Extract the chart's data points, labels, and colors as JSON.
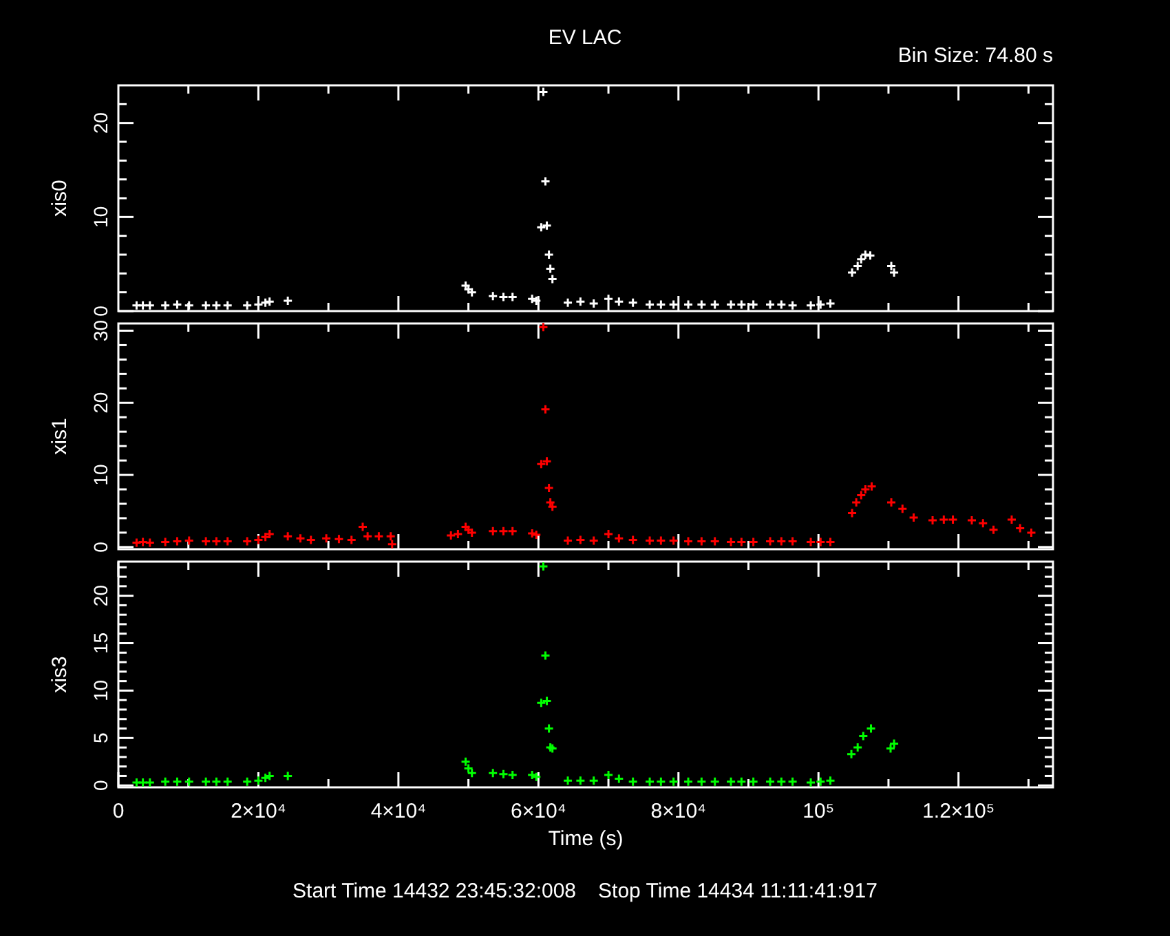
{
  "chart_data": [
    {
      "type": "scatter",
      "title": "EV LAC",
      "annotations": [
        "Bin Size: 74.80 s"
      ],
      "ylabel": "xis0",
      "marker": "cross",
      "tick_labels": "y",
      "xlim": [
        0,
        133500
      ],
      "xticks": [
        {
          "value": 10000,
          "label": null
        },
        20000,
        {
          "value": 30000,
          "label": null
        },
        40000,
        {
          "value": 50000,
          "label": null
        },
        60000,
        {
          "value": 70000,
          "label": null
        },
        80000,
        {
          "value": 90000,
          "label": null
        },
        100000,
        {
          "value": 110000,
          "label": null
        },
        120000,
        {
          "value": 130000,
          "label": null
        }
      ],
      "ylim": [
        0,
        24
      ],
      "yticks": [
        0,
        {
          "value": 2,
          "label": null
        },
        {
          "value": 4,
          "label": null
        },
        {
          "value": 6,
          "label": null
        },
        {
          "value": 8,
          "label": null
        },
        10,
        {
          "value": 12,
          "label": null
        },
        {
          "value": 14,
          "label": null
        },
        {
          "value": 16,
          "label": null
        },
        {
          "value": 18,
          "label": null
        },
        20,
        {
          "value": 22,
          "label": null
        }
      ],
      "series": [
        {
          "color": "#ffffff",
          "x": [
            2600,
            3500,
            4500,
            6700,
            8400,
            10100,
            12500,
            14000,
            15600,
            18400,
            20000,
            21000,
            21600,
            24200,
            49600,
            50000,
            50500,
            53500,
            55000,
            56300,
            59100,
            59700,
            60400,
            60700,
            61000,
            61200,
            61500,
            61700,
            62000,
            64200,
            66000,
            67900,
            70000,
            71500,
            73500,
            75900,
            77500,
            79300,
            81400,
            83300,
            85200,
            87500,
            89000,
            90700,
            93100,
            94700,
            96300,
            98900,
            100300,
            101700,
            104800,
            105600,
            106100,
            106700,
            107400,
            110400,
            110800
          ],
          "values": [
            0.6,
            0.6,
            0.6,
            0.6,
            0.7,
            0.6,
            0.6,
            0.6,
            0.6,
            0.6,
            0.7,
            0.9,
            1.0,
            1.1,
            2.7,
            2.3,
            2.0,
            1.6,
            1.5,
            1.5,
            1.3,
            1.1,
            8.9,
            23.3,
            13.8,
            9.1,
            6.0,
            4.5,
            3.4,
            0.9,
            1.0,
            0.8,
            1.3,
            1.0,
            0.9,
            0.7,
            0.7,
            0.7,
            0.7,
            0.7,
            0.7,
            0.7,
            0.7,
            0.7,
            0.7,
            0.7,
            0.6,
            0.6,
            0.7,
            0.8,
            4.1,
            4.8,
            5.5,
            6.0,
            5.9,
            4.8,
            4.1
          ]
        }
      ]
    },
    {
      "type": "scatter",
      "ylabel": "xis1",
      "marker": "cross",
      "tick_labels": "y",
      "xlim": [
        0,
        133500
      ],
      "xticks": [
        {
          "value": 10000,
          "label": null
        },
        20000,
        {
          "value": 30000,
          "label": null
        },
        40000,
        {
          "value": 50000,
          "label": null
        },
        60000,
        {
          "value": 70000,
          "label": null
        },
        80000,
        {
          "value": 90000,
          "label": null
        },
        100000,
        {
          "value": 110000,
          "label": null
        },
        120000,
        {
          "value": 130000,
          "label": null
        }
      ],
      "ylim": [
        -0.3,
        31
      ],
      "yticks": [
        0,
        {
          "value": 2,
          "label": null
        },
        {
          "value": 4,
          "label": null
        },
        {
          "value": 6,
          "label": null
        },
        {
          "value": 8,
          "label": null
        },
        10,
        {
          "value": 12,
          "label": null
        },
        {
          "value": 14,
          "label": null
        },
        {
          "value": 16,
          "label": null
        },
        {
          "value": 18,
          "label": null
        },
        20,
        {
          "value": 22,
          "label": null
        },
        {
          "value": 24,
          "label": null
        },
        {
          "value": 26,
          "label": null
        },
        {
          "value": 28,
          "label": null
        },
        30
      ],
      "series": [
        {
          "color": "#ff0000",
          "x": [
            2600,
            3500,
            4500,
            6700,
            8400,
            10100,
            12500,
            14000,
            15600,
            18400,
            20000,
            21000,
            21600,
            24200,
            26000,
            27500,
            29700,
            31500,
            33300,
            34900,
            35600,
            37200,
            38900,
            39100,
            47500,
            48500,
            49600,
            50000,
            50500,
            53500,
            55000,
            56300,
            59100,
            59700,
            60400,
            60700,
            61000,
            61200,
            61500,
            61700,
            62000,
            64200,
            66000,
            67900,
            70000,
            71500,
            73500,
            75900,
            77500,
            79300,
            81400,
            83300,
            85200,
            87500,
            89000,
            90700,
            93100,
            94700,
            96300,
            98900,
            100300,
            101700,
            104800,
            105400,
            106100,
            106700,
            107600,
            110400,
            112000,
            113600,
            116300,
            117900,
            119200,
            121900,
            123500,
            125000,
            127600,
            128800,
            130400
          ],
          "values": [
            0.6,
            0.7,
            0.6,
            0.7,
            0.8,
            0.9,
            0.8,
            0.8,
            0.8,
            0.8,
            1.0,
            1.4,
            1.8,
            1.5,
            1.2,
            1.0,
            1.2,
            1.1,
            1.0,
            2.8,
            1.5,
            1.5,
            1.5,
            0.4,
            1.6,
            1.8,
            2.8,
            2.4,
            2.0,
            2.2,
            2.2,
            2.2,
            1.9,
            1.7,
            11.5,
            30.5,
            19.1,
            11.9,
            8.2,
            6.2,
            5.6,
            0.9,
            1.0,
            0.9,
            1.8,
            1.2,
            1.0,
            0.9,
            0.9,
            0.9,
            0.8,
            0.8,
            0.8,
            0.7,
            0.7,
            0.7,
            0.8,
            0.8,
            0.8,
            0.7,
            0.7,
            0.7,
            4.7,
            6.2,
            7.2,
            8.0,
            8.4,
            6.2,
            5.3,
            4.1,
            3.7,
            3.8,
            3.8,
            3.7,
            3.3,
            2.4,
            3.8,
            2.6,
            2.0
          ]
        }
      ]
    },
    {
      "type": "scatter",
      "ylabel": "xis3",
      "xlabel": "Time (s)",
      "marker": "cross",
      "annotations": [
        "Start Time 14432 23:45:32:008",
        "Stop Time 14434 11:11:41:917"
      ],
      "xlim": [
        0,
        133500
      ],
      "xticks": [
        0,
        {
          "value": 10000,
          "label": null
        },
        {
          "value": 20000,
          "label": "2×10⁴"
        },
        {
          "value": 30000,
          "label": null
        },
        {
          "value": 40000,
          "label": "4×10⁴"
        },
        {
          "value": 50000,
          "label": null
        },
        {
          "value": 60000,
          "label": "6×10⁴"
        },
        {
          "value": 70000,
          "label": null
        },
        {
          "value": 80000,
          "label": "8×10⁴"
        },
        {
          "value": 90000,
          "label": null
        },
        {
          "value": 100000,
          "label": "10⁵"
        },
        {
          "value": 110000,
          "label": null
        },
        {
          "value": 120000,
          "label": "1.2×10⁵"
        },
        {
          "value": 130000,
          "label": null
        }
      ],
      "ylim": [
        -0.2,
        23.6
      ],
      "yticks": [
        0,
        {
          "value": 1,
          "label": null
        },
        {
          "value": 2,
          "label": null
        },
        {
          "value": 3,
          "label": null
        },
        {
          "value": 4,
          "label": null
        },
        5,
        {
          "value": 6,
          "label": null
        },
        {
          "value": 7,
          "label": null
        },
        {
          "value": 8,
          "label": null
        },
        {
          "value": 9,
          "label": null
        },
        10,
        {
          "value": 11,
          "label": null
        },
        {
          "value": 12,
          "label": null
        },
        {
          "value": 13,
          "label": null
        },
        {
          "value": 14,
          "label": null
        },
        15,
        {
          "value": 16,
          "label": null
        },
        {
          "value": 17,
          "label": null
        },
        {
          "value": 18,
          "label": null
        },
        {
          "value": 19,
          "label": null
        },
        20,
        {
          "value": 21,
          "label": null
        },
        {
          "value": 22,
          "label": null
        },
        {
          "value": 23,
          "label": null
        }
      ],
      "series": [
        {
          "color": "#00ff00",
          "x": [
            2600,
            3500,
            4500,
            6700,
            8400,
            10100,
            12500,
            14000,
            15600,
            18400,
            20000,
            21000,
            21600,
            24200,
            49600,
            50000,
            50500,
            53500,
            55000,
            56300,
            59100,
            59700,
            60400,
            60700,
            61000,
            61200,
            61500,
            61700,
            62000,
            64200,
            66000,
            67900,
            70000,
            71500,
            73500,
            75900,
            77500,
            79300,
            81400,
            83300,
            85200,
            87500,
            89000,
            90700,
            93100,
            94700,
            96300,
            98900,
            100300,
            101700,
            104700,
            105600,
            106400,
            107500,
            110300,
            110800
          ],
          "values": [
            0.3,
            0.3,
            0.3,
            0.4,
            0.4,
            0.4,
            0.4,
            0.4,
            0.4,
            0.4,
            0.5,
            0.8,
            1.0,
            1.0,
            2.5,
            1.8,
            1.3,
            1.3,
            1.2,
            1.1,
            1.1,
            0.9,
            8.7,
            23.1,
            13.7,
            8.9,
            6.0,
            4.0,
            3.9,
            0.5,
            0.5,
            0.5,
            1.1,
            0.7,
            0.4,
            0.4,
            0.4,
            0.4,
            0.4,
            0.4,
            0.4,
            0.4,
            0.4,
            0.4,
            0.4,
            0.4,
            0.4,
            0.3,
            0.4,
            0.5,
            3.3,
            4.0,
            5.2,
            6.0,
            3.9,
            4.4
          ]
        }
      ]
    }
  ]
}
